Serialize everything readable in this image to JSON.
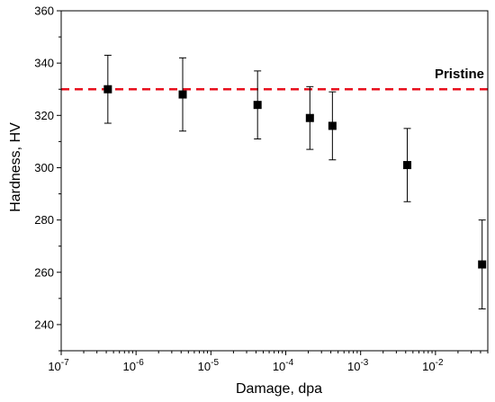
{
  "chart_data": {
    "type": "scatter",
    "xlabel": "Damage, dpa",
    "ylabel": "Hardness, HV",
    "xscale": "log",
    "xlim": [
      1e-07,
      0.05
    ],
    "ylim": [
      230,
      360
    ],
    "x_ticks": [
      {
        "value": 1e-07,
        "mantissa": "10",
        "exp": "-7"
      },
      {
        "value": 1e-06,
        "mantissa": "10",
        "exp": "-6"
      },
      {
        "value": 1e-05,
        "mantissa": "10",
        "exp": "-5"
      },
      {
        "value": 0.0001,
        "mantissa": "10",
        "exp": "-4"
      },
      {
        "value": 0.001,
        "mantissa": "10",
        "exp": "-3"
      },
      {
        "value": 0.01,
        "mantissa": "10",
        "exp": "-2"
      }
    ],
    "y_ticks": [
      240,
      260,
      280,
      300,
      320,
      340,
      360
    ],
    "series": [
      {
        "marker": "square",
        "color": "#000000",
        "points": [
          {
            "x": 4.2e-07,
            "y": 330,
            "err_low": 317,
            "err_high": 343
          },
          {
            "x": 4.2e-06,
            "y": 328,
            "err_low": 314,
            "err_high": 342
          },
          {
            "x": 4.2e-05,
            "y": 324,
            "err_low": 311,
            "err_high": 337
          },
          {
            "x": 0.00021,
            "y": 319,
            "err_low": 307,
            "err_high": 331
          },
          {
            "x": 0.00042,
            "y": 316,
            "err_low": 303,
            "err_high": 329
          },
          {
            "x": 0.0042,
            "y": 301,
            "err_low": 287,
            "err_high": 315
          },
          {
            "x": 0.042,
            "y": 263,
            "err_low": 246,
            "err_high": 280
          }
        ]
      }
    ],
    "reference_line": {
      "label": "Pristine",
      "y": 330,
      "color": "#e8101e",
      "style": "dashed"
    }
  }
}
